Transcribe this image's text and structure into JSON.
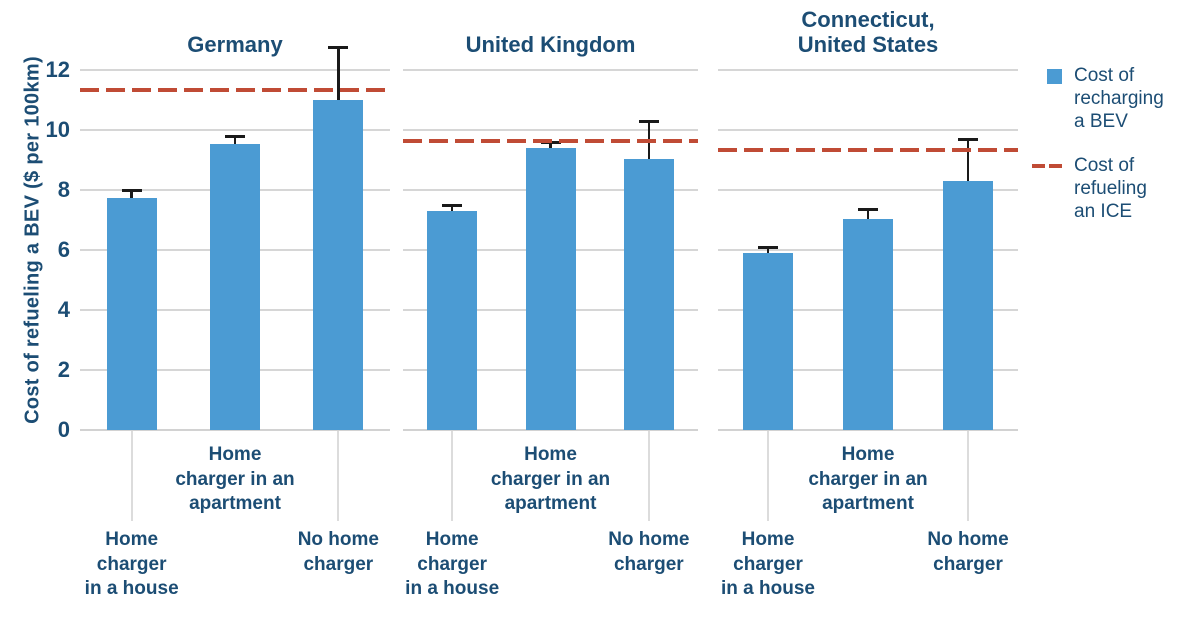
{
  "chart_data": {
    "type": "bar",
    "title": "",
    "ylabel": "Cost of refueling a BEV ($ per 100km)",
    "ylim": [
      0,
      12.5
    ],
    "yticks": [
      0,
      2,
      4,
      6,
      8,
      10,
      12
    ],
    "grid": true,
    "legend_position": "right",
    "categories": [
      "Home charger in a house",
      "Home charger in an apartment",
      "No home charger"
    ],
    "categories_display": [
      "Home\ncharger\nin a house",
      "Home\ncharger in an\napartment",
      "No home\ncharger"
    ],
    "panels": [
      {
        "title": "Germany",
        "title_display": "Germany",
        "values": [
          7.75,
          9.55,
          11.0
        ],
        "error_plus": [
          0.25,
          0.25,
          1.75
        ],
        "ice_line": 11.35
      },
      {
        "title": "United Kingdom",
        "title_display": "United Kingdom",
        "values": [
          7.3,
          9.4,
          9.05
        ],
        "error_plus": [
          0.2,
          0.2,
          1.25
        ],
        "ice_line": 9.65
      },
      {
        "title": "Connecticut, United States",
        "title_display": "Connecticut,\nUnited States",
        "values": [
          5.9,
          7.05,
          8.3
        ],
        "error_plus": [
          0.2,
          0.3,
          1.4
        ],
        "ice_line": 9.35
      }
    ],
    "legend": [
      {
        "label": "Cost of recharging a BEV",
        "label_display": "Cost of\nrecharging\na BEV",
        "swatch": "blue-bar-square"
      },
      {
        "label": "Cost of refueling an ICE",
        "label_display": "Cost of\nrefueling\nan ICE",
        "swatch": "red-dashed-line"
      }
    ]
  },
  "colors": {
    "bar_blue": "#4b9bd3",
    "ice_red": "#c04b35",
    "text_navy": "#1c4d74",
    "gridline_gray": "#d6d6d6",
    "tick_gray": "#dcdcdc",
    "error_bar_black": "#1a1a1a"
  }
}
